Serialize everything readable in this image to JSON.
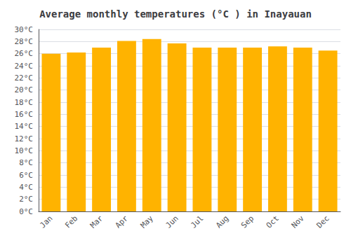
{
  "chart_data": {
    "type": "bar",
    "title": "Average monthly temperatures (°C ) in Inayauan",
    "categories": [
      "Jan",
      "Feb",
      "Mar",
      "Apr",
      "May",
      "Jun",
      "Jul",
      "Aug",
      "Sep",
      "Oct",
      "Nov",
      "Dec"
    ],
    "values": [
      26.0,
      26.2,
      27.0,
      28.1,
      28.4,
      27.7,
      27.0,
      27.0,
      27.0,
      27.2,
      27.0,
      26.5
    ],
    "color": "#FFB300",
    "ylim": [
      0,
      30
    ],
    "yticks": [
      {
        "value": 0,
        "label": "0°C"
      },
      {
        "value": 2,
        "label": "2°C"
      },
      {
        "value": 4,
        "label": "4°C"
      },
      {
        "value": 6,
        "label": "6°C"
      },
      {
        "value": 8,
        "label": "8°C"
      },
      {
        "value": 10,
        "label": "10°C"
      },
      {
        "value": 12,
        "label": "12°C"
      },
      {
        "value": 14,
        "label": "14°C"
      },
      {
        "value": 16,
        "label": "16°C"
      },
      {
        "value": 18,
        "label": "18°C"
      },
      {
        "value": 20,
        "label": "20°C"
      },
      {
        "value": 22,
        "label": "22°C"
      },
      {
        "value": 24,
        "label": "24°C"
      },
      {
        "value": 26,
        "label": "26°C"
      },
      {
        "value": 28,
        "label": "28°C"
      },
      {
        "value": 30,
        "label": "30°C"
      }
    ],
    "grid": true
  }
}
